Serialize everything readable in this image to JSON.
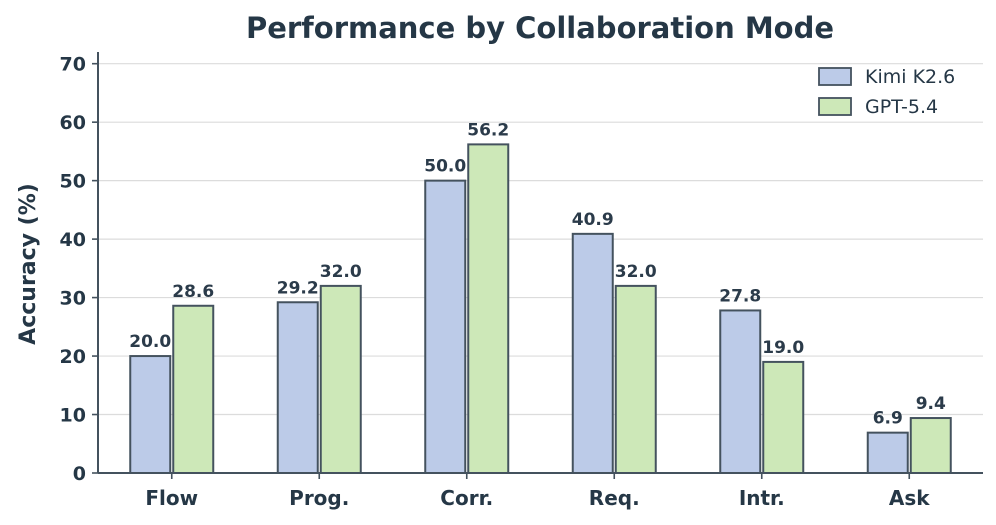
{
  "chart_data": {
    "type": "bar",
    "title": "Performance by Collaboration Mode",
    "xlabel": "",
    "ylabel": "Accuracy (%)",
    "categories": [
      "Flow",
      "Prog.",
      "Corr.",
      "Req.",
      "Intr.",
      "Ask"
    ],
    "ylim": [
      0,
      72
    ],
    "yticks": [
      0,
      10,
      20,
      30,
      40,
      50,
      60,
      70
    ],
    "grid": "horizontal",
    "legend_position": "top-right",
    "series": [
      {
        "name": "Kimi K2.6",
        "values": [
          20.0,
          29.2,
          50.0,
          40.9,
          27.8,
          6.9
        ],
        "color": "#bccbe8",
        "labels": [
          "20.0",
          "29.2",
          "50.0",
          "40.9",
          "27.8",
          "6.9"
        ]
      },
      {
        "name": "GPT-5.4",
        "values": [
          28.6,
          32.0,
          56.2,
          32.0,
          19.0,
          9.4
        ],
        "color": "#cde8b8",
        "labels": [
          "28.6",
          "32.0",
          "56.2",
          "32.0",
          "19.0",
          "9.4"
        ]
      }
    ],
    "edge_color": "#44525e",
    "text_color": "#253746"
  }
}
